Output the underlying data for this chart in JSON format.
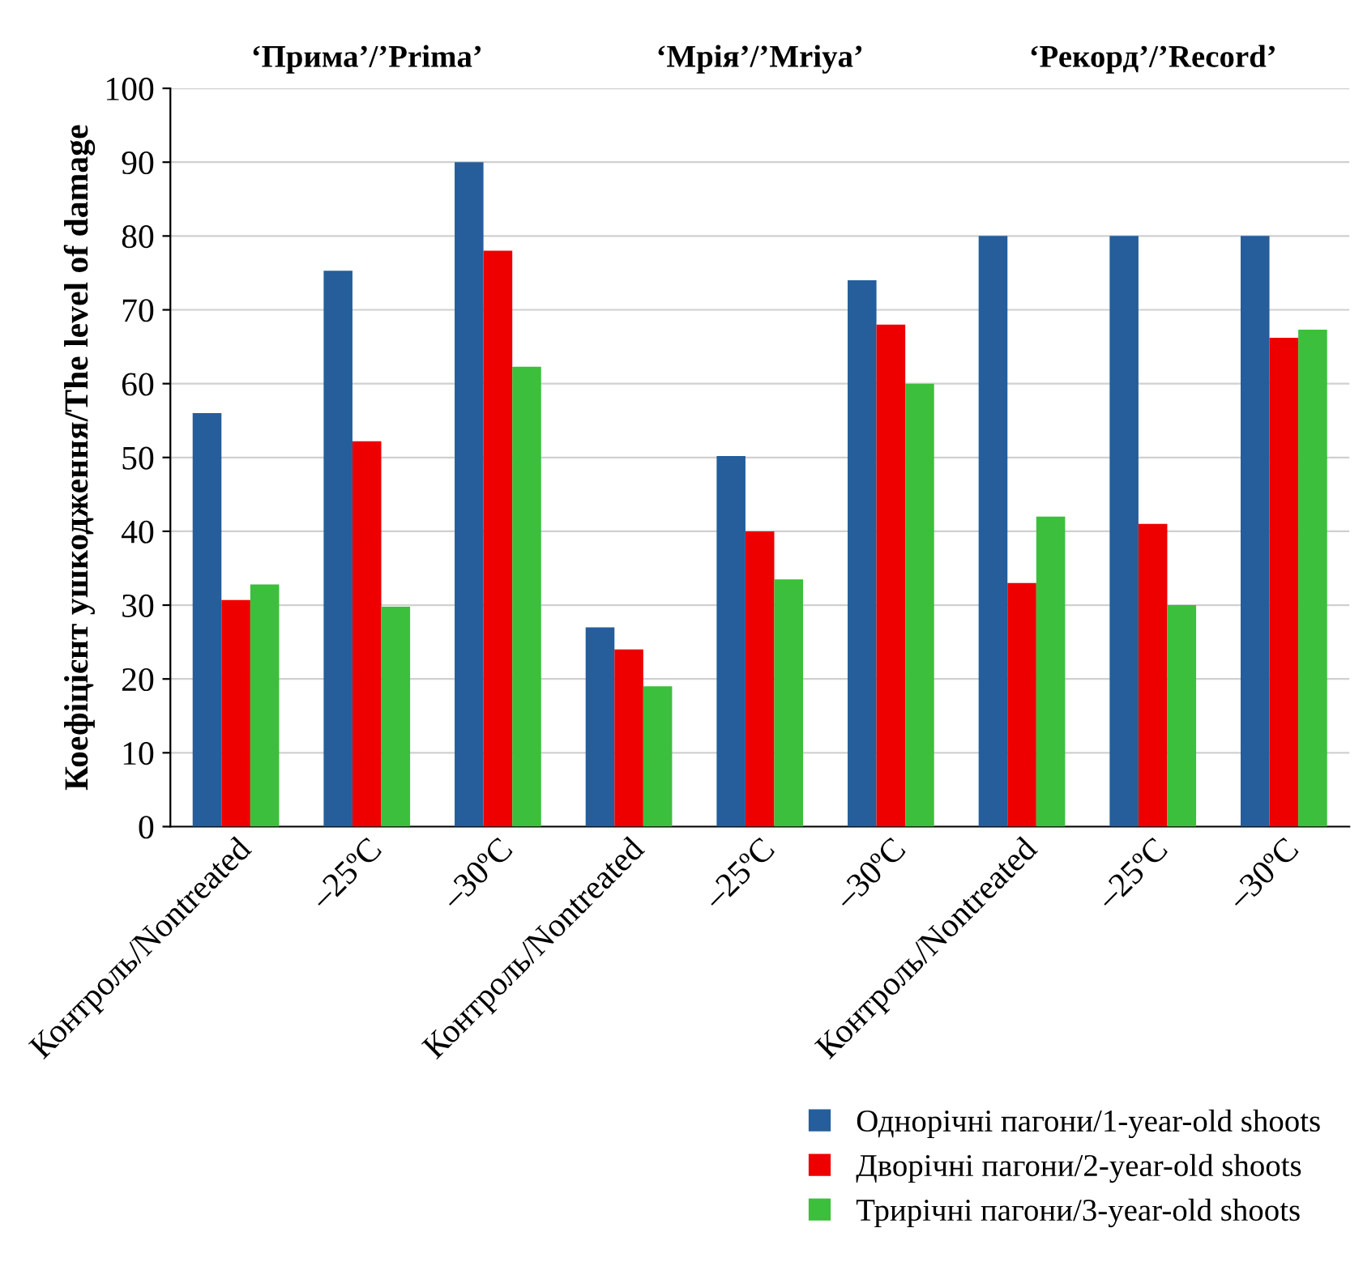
{
  "chart_data": {
    "type": "bar",
    "ylabel": "Коефіцієнт ушкодження/The level of damage",
    "categories": [
      "Контроль/Nontreated",
      "–25ºC",
      "–30ºC",
      "Контроль/Nontreated",
      "–25ºC",
      "–30ºC",
      "Контроль/Nontreated",
      "–25ºC",
      "–30ºC"
    ],
    "series": [
      {
        "name": "Однорічні пагони/1-year-old shoots",
        "color": "#255e9a",
        "values": [
          56,
          75.3,
          90,
          27,
          50.2,
          74,
          80,
          80,
          80
        ]
      },
      {
        "name": "Дворічні пагони/2-year-old shoots",
        "color": "#ee0000",
        "values": [
          30.7,
          52.2,
          78,
          24,
          40,
          68,
          33,
          41,
          66.2
        ]
      },
      {
        "name": "Трирічні пагони/3-year-old shoots",
        "color": "#3cbf3c",
        "values": [
          32.8,
          29.8,
          62.3,
          19,
          33.5,
          60,
          42,
          30,
          67.3
        ]
      }
    ],
    "annotations": [
      "‘Прима’/’Prima’",
      "‘Мрія’/’Mriya’",
      "‘Рекорд’/’Record’"
    ],
    "ylim": [
      0,
      100
    ],
    "yticks": [
      0,
      10,
      20,
      30,
      40,
      50,
      60,
      70,
      80,
      90,
      100
    ],
    "grid": "y",
    "legend": "bottom"
  }
}
